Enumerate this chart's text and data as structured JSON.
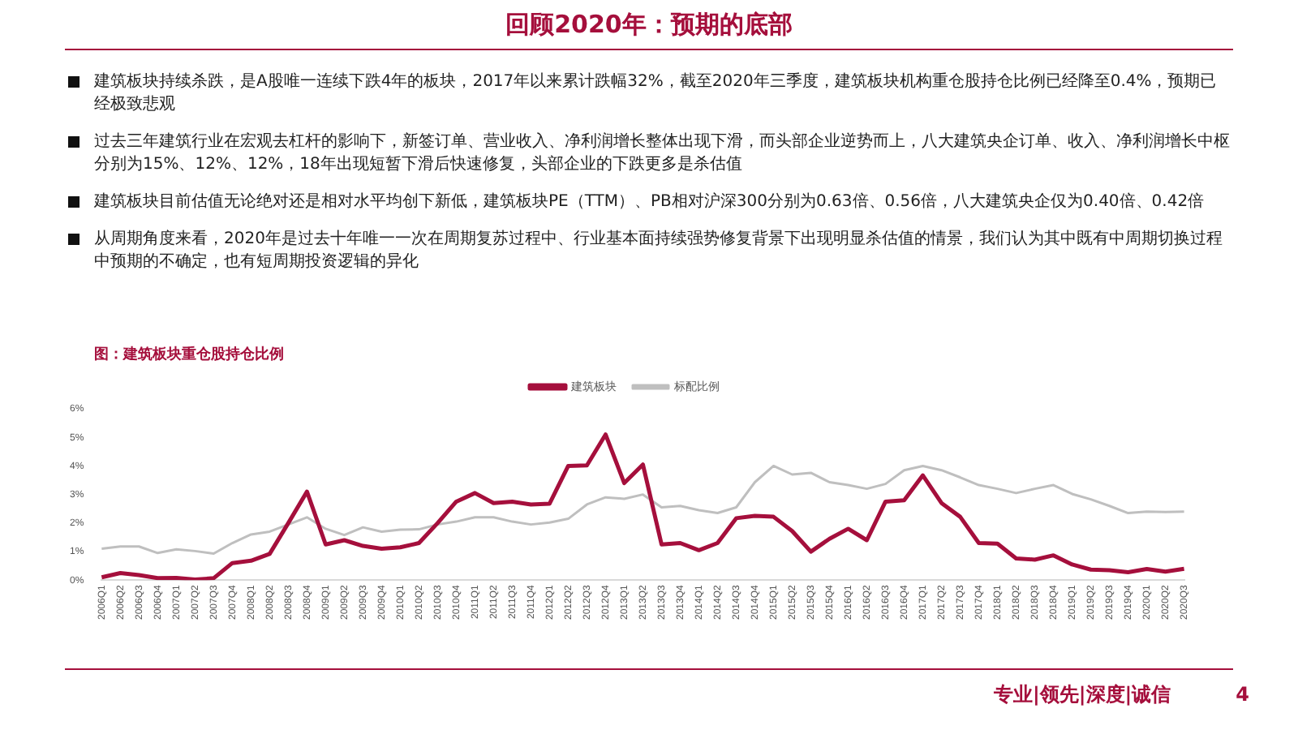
{
  "chart_data": {
    "type": "line",
    "title": "回顾2020年：预期的底部",
    "subtitle": "图：建筑板块重仓股持仓比例",
    "annotations": [
      "建筑板块持续杀跌，是A股唯一连续下跌4年的板块，2017年以来累计跌幅32%，截至2020年三季度，建筑板块机构重仓股持仓比例已经降至0.4%，预期已经极致悲观",
      "过去三年建筑行业在宏观去杠杆的影响下，新签订单、营业收入、净利润增长整体出现下滑，而头部企业逆势而上，八大建筑央企订单、收入、净利润增长中枢分别为15%、12%、12%，18年出现短暂下滑后快速修复，头部企业的下跌更多是杀估值",
      "建筑板块目前估值无论绝对还是相对水平均创下新低，建筑板块PE（TTM）、PB相对沪深300分别为0.63倍、0.56倍，八大建筑央企仅为0.40倍、0.42倍",
      "从周期角度来看，2020年是过去十年唯一一次在周期复苏过程中、行业基本面持续强势修复背景下出现明显杀估值的情景，我们认为其中既有中周期切换过程中预期的不确定，也有短周期投资逻辑的异化",
      "专业|领先|深度|诚信",
      "4"
    ],
    "categories": [
      "2006Q1",
      "2006Q2",
      "2006Q3",
      "2006Q4",
      "2007Q1",
      "2007Q2",
      "2007Q3",
      "2007Q4",
      "2008Q1",
      "2008Q2",
      "2008Q3",
      "2008Q4",
      "2009Q1",
      "2009Q2",
      "2009Q3",
      "2009Q4",
      "2010Q1",
      "2010Q2",
      "2010Q3",
      "2010Q4",
      "2011Q1",
      "2011Q2",
      "2011Q3",
      "2011Q4",
      "2012Q1",
      "2012Q2",
      "2012Q3",
      "2012Q4",
      "2013Q1",
      "2013Q2",
      "2013Q3",
      "2013Q4",
      "2014Q1",
      "2014Q2",
      "2014Q3",
      "2014Q4",
      "2015Q1",
      "2015Q2",
      "2015Q3",
      "2015Q4",
      "2016Q1",
      "2016Q2",
      "2016Q3",
      "2016Q4",
      "2017Q1",
      "2017Q2",
      "2017Q3",
      "2017Q4",
      "2018Q1",
      "2018Q2",
      "2018Q3",
      "2018Q4",
      "2019Q1",
      "2019Q2",
      "2019Q3",
      "2019Q4",
      "2020Q1",
      "2020Q2",
      "2020Q3"
    ],
    "series": [
      {
        "name": "建筑板块",
        "color": "#a50f3c",
        "values": [
          0.1,
          0.25,
          0.18,
          0.07,
          0.08,
          0.02,
          0.07,
          0.6,
          0.68,
          0.92,
          2.0,
          3.1,
          1.25,
          1.4,
          1.2,
          1.1,
          1.15,
          1.3,
          2.0,
          2.75,
          3.05,
          2.7,
          2.75,
          2.65,
          2.68,
          4.0,
          4.02,
          5.1,
          3.4,
          4.05,
          1.25,
          1.3,
          1.05,
          1.3,
          2.17,
          2.25,
          2.22,
          1.72,
          1.0,
          1.45,
          1.8,
          1.4,
          2.75,
          2.8,
          3.67,
          2.7,
          2.22,
          1.3,
          1.28,
          0.76,
          0.72,
          0.87,
          0.55,
          0.37,
          0.35,
          0.28,
          0.39,
          0.3,
          0.4
        ]
      },
      {
        "name": "标配比例",
        "color": "#bfbfbf",
        "values": [
          1.1,
          1.18,
          1.18,
          0.95,
          1.08,
          1.02,
          0.93,
          1.3,
          1.6,
          1.7,
          1.95,
          2.2,
          1.8,
          1.58,
          1.85,
          1.7,
          1.77,
          1.78,
          1.95,
          2.05,
          2.2,
          2.2,
          2.05,
          1.95,
          2.02,
          2.15,
          2.65,
          2.9,
          2.85,
          3.0,
          2.55,
          2.6,
          2.45,
          2.35,
          2.55,
          3.43,
          4.0,
          3.7,
          3.76,
          3.43,
          3.33,
          3.2,
          3.37,
          3.85,
          4.0,
          3.85,
          3.6,
          3.33,
          3.2,
          3.05,
          3.2,
          3.33,
          3.02,
          2.83,
          2.6,
          2.35,
          2.4,
          2.39,
          2.4
        ]
      }
    ],
    "ylim": [
      0,
      6
    ],
    "yticks": [
      {
        "value": 0,
        "label": "0%"
      },
      {
        "value": 1,
        "label": "1%"
      },
      {
        "value": 2,
        "label": "2%"
      },
      {
        "value": 3,
        "label": "3%"
      },
      {
        "value": 4,
        "label": "4%"
      },
      {
        "value": 5,
        "label": "5%"
      },
      {
        "value": 6,
        "label": "6%"
      }
    ],
    "grid": false,
    "legend": "top",
    "marker": "none",
    "line_style": "solid"
  }
}
